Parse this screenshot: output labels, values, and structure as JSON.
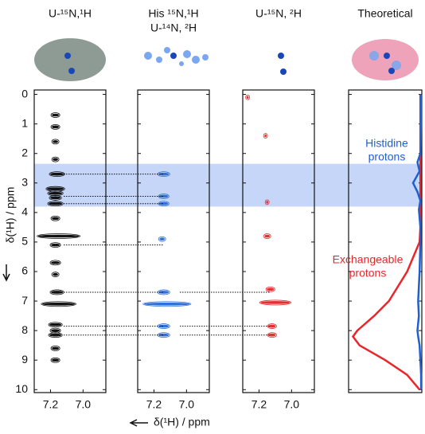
{
  "shared": {
    "y_label": "δ(¹H) / ppm",
    "x_label": "δ(¹H) / ppm",
    "ylim": [
      -0.15,
      10.1
    ],
    "yticks": [
      0,
      1,
      2,
      3,
      4,
      5,
      6,
      7,
      8,
      9,
      10
    ],
    "band": [
      2.35,
      3.8
    ],
    "band_color": "#c6d6f8",
    "guides": [
      {
        "ppm": 2.7,
        "panels": 2
      },
      {
        "ppm": 3.45,
        "panels": 2
      },
      {
        "ppm": 3.7,
        "panels": 2
      },
      {
        "ppm": 5.1,
        "panels": 2
      },
      {
        "ppm": 6.7,
        "panels": 3
      },
      {
        "ppm": 7.85,
        "panels": 3
      },
      {
        "ppm": 8.15,
        "panels": 3
      }
    ]
  },
  "chart_data": [
    {
      "type": "scatter",
      "title": [
        "U-¹⁵N,¹H"
      ],
      "color": "#111111",
      "xlim": [
        7.3,
        6.86
      ],
      "xticks": [
        {
          "value": 7.2,
          "label": "7.2"
        },
        {
          "value": 7.0,
          "label": "7.0"
        }
      ],
      "x": [
        7.17,
        7.17,
        7.17,
        7.17,
        7.16,
        7.17,
        7.17,
        7.17,
        7.17,
        7.17,
        7.15,
        7.17,
        7.17,
        7.17,
        7.16,
        7.15,
        7.17,
        7.17,
        7.17,
        7.17,
        7.17
      ],
      "y": [
        0.7,
        1.1,
        1.6,
        2.2,
        2.7,
        3.2,
        3.35,
        3.5,
        3.7,
        4.2,
        4.8,
        5.1,
        5.7,
        6.1,
        6.7,
        7.1,
        7.8,
        8.0,
        8.15,
        8.6,
        9.0
      ],
      "widths": [
        0.04,
        0.04,
        0.03,
        0.03,
        0.08,
        0.1,
        0.08,
        0.06,
        0.08,
        0.04,
        0.25,
        0.05,
        0.05,
        0.03,
        0.07,
        0.2,
        0.07,
        0.05,
        0.07,
        0.04,
        0.04
      ]
    },
    {
      "type": "scatter",
      "title": [
        "His ¹⁵N,¹H",
        "U-¹⁴N, ²H"
      ],
      "color": "#2f6fd8",
      "xlim": [
        7.3,
        6.86
      ],
      "xticks": [
        {
          "value": 7.2,
          "label": "7.2"
        },
        {
          "value": 7.0,
          "label": "7.0"
        }
      ],
      "x": [
        7.14,
        7.14,
        7.14,
        7.15,
        7.14,
        7.12,
        7.14,
        7.14
      ],
      "y": [
        2.7,
        3.45,
        3.7,
        4.9,
        6.7,
        7.1,
        7.85,
        8.15
      ],
      "widths": [
        0.06,
        0.05,
        0.05,
        0.03,
        0.06,
        0.28,
        0.06,
        0.06
      ]
    },
    {
      "type": "scatter",
      "title": [
        "U-¹⁵N, ²H"
      ],
      "color": "#e0302f",
      "xlim": [
        7.3,
        6.86
      ],
      "xticks": [
        {
          "value": 7.2,
          "label": "7.2"
        },
        {
          "value": 7.0,
          "label": "7.0"
        }
      ],
      "x": [
        7.15,
        7.13,
        7.1,
        7.12,
        7.12,
        7.27,
        7.16,
        7.15
      ],
      "y": [
        4.8,
        6.6,
        7.05,
        7.85,
        8.15,
        0.1,
        1.4,
        3.65
      ],
      "widths": [
        0.03,
        0.04,
        0.18,
        0.04,
        0.04,
        0.01,
        0.01,
        0.01
      ]
    },
    {
      "type": "line",
      "title": [
        "Theoretical"
      ],
      "xlim": [
        1,
        0
      ],
      "ppm": [
        0,
        1,
        2,
        2.3,
        2.6,
        3.0,
        3.3,
        3.6,
        3.9,
        4.5,
        5,
        6,
        7,
        7.5,
        8,
        8.2,
        8.5,
        9,
        9.5,
        10
      ],
      "series": [
        {
          "name": [
            "Exchangeable",
            "protons"
          ],
          "color": "#e8262b",
          "values": [
            0.02,
            0.02,
            0.02,
            0.02,
            0.02,
            0.02,
            0.02,
            0.02,
            0.02,
            0.02,
            0.03,
            0.2,
            0.45,
            0.65,
            0.88,
            0.94,
            0.85,
            0.5,
            0.2,
            0.03
          ]
        },
        {
          "name": [
            "Histidine",
            "protons"
          ],
          "color": "#1f5fd1",
          "values": [
            0.01,
            0.01,
            0.02,
            0.06,
            0.03,
            0.12,
            0.06,
            0.02,
            0.04,
            0.02,
            0.02,
            0.03,
            0.05,
            0.04,
            0.06,
            0.05,
            0.03,
            0.02,
            0.01,
            0.01
          ]
        }
      ]
    }
  ]
}
